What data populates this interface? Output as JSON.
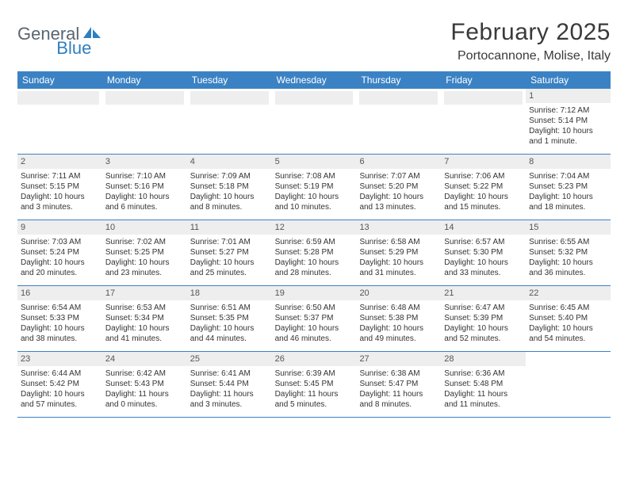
{
  "logo": {
    "text1": "General",
    "text2": "Blue",
    "icon_color": "#2f7fbf",
    "text1_color": "#5a6570"
  },
  "title": "February 2025",
  "location": "Portocannone, Molise, Italy",
  "colors": {
    "header_bg": "#3b82c4",
    "header_text": "#ffffff",
    "grid_line": "#3b82c4",
    "daynum_bg": "#eeeeee",
    "body_text": "#333333"
  },
  "day_headers": [
    "Sunday",
    "Monday",
    "Tuesday",
    "Wednesday",
    "Thursday",
    "Friday",
    "Saturday"
  ],
  "weeks": [
    [
      null,
      null,
      null,
      null,
      null,
      null,
      {
        "n": "1",
        "sunrise": "7:12 AM",
        "sunset": "5:14 PM",
        "daylight": "10 hours and 1 minute."
      }
    ],
    [
      {
        "n": "2",
        "sunrise": "7:11 AM",
        "sunset": "5:15 PM",
        "daylight": "10 hours and 3 minutes."
      },
      {
        "n": "3",
        "sunrise": "7:10 AM",
        "sunset": "5:16 PM",
        "daylight": "10 hours and 6 minutes."
      },
      {
        "n": "4",
        "sunrise": "7:09 AM",
        "sunset": "5:18 PM",
        "daylight": "10 hours and 8 minutes."
      },
      {
        "n": "5",
        "sunrise": "7:08 AM",
        "sunset": "5:19 PM",
        "daylight": "10 hours and 10 minutes."
      },
      {
        "n": "6",
        "sunrise": "7:07 AM",
        "sunset": "5:20 PM",
        "daylight": "10 hours and 13 minutes."
      },
      {
        "n": "7",
        "sunrise": "7:06 AM",
        "sunset": "5:22 PM",
        "daylight": "10 hours and 15 minutes."
      },
      {
        "n": "8",
        "sunrise": "7:04 AM",
        "sunset": "5:23 PM",
        "daylight": "10 hours and 18 minutes."
      }
    ],
    [
      {
        "n": "9",
        "sunrise": "7:03 AM",
        "sunset": "5:24 PM",
        "daylight": "10 hours and 20 minutes."
      },
      {
        "n": "10",
        "sunrise": "7:02 AM",
        "sunset": "5:25 PM",
        "daylight": "10 hours and 23 minutes."
      },
      {
        "n": "11",
        "sunrise": "7:01 AM",
        "sunset": "5:27 PM",
        "daylight": "10 hours and 25 minutes."
      },
      {
        "n": "12",
        "sunrise": "6:59 AM",
        "sunset": "5:28 PM",
        "daylight": "10 hours and 28 minutes."
      },
      {
        "n": "13",
        "sunrise": "6:58 AM",
        "sunset": "5:29 PM",
        "daylight": "10 hours and 31 minutes."
      },
      {
        "n": "14",
        "sunrise": "6:57 AM",
        "sunset": "5:30 PM",
        "daylight": "10 hours and 33 minutes."
      },
      {
        "n": "15",
        "sunrise": "6:55 AM",
        "sunset": "5:32 PM",
        "daylight": "10 hours and 36 minutes."
      }
    ],
    [
      {
        "n": "16",
        "sunrise": "6:54 AM",
        "sunset": "5:33 PM",
        "daylight": "10 hours and 38 minutes."
      },
      {
        "n": "17",
        "sunrise": "6:53 AM",
        "sunset": "5:34 PM",
        "daylight": "10 hours and 41 minutes."
      },
      {
        "n": "18",
        "sunrise": "6:51 AM",
        "sunset": "5:35 PM",
        "daylight": "10 hours and 44 minutes."
      },
      {
        "n": "19",
        "sunrise": "6:50 AM",
        "sunset": "5:37 PM",
        "daylight": "10 hours and 46 minutes."
      },
      {
        "n": "20",
        "sunrise": "6:48 AM",
        "sunset": "5:38 PM",
        "daylight": "10 hours and 49 minutes."
      },
      {
        "n": "21",
        "sunrise": "6:47 AM",
        "sunset": "5:39 PM",
        "daylight": "10 hours and 52 minutes."
      },
      {
        "n": "22",
        "sunrise": "6:45 AM",
        "sunset": "5:40 PM",
        "daylight": "10 hours and 54 minutes."
      }
    ],
    [
      {
        "n": "23",
        "sunrise": "6:44 AM",
        "sunset": "5:42 PM",
        "daylight": "10 hours and 57 minutes."
      },
      {
        "n": "24",
        "sunrise": "6:42 AM",
        "sunset": "5:43 PM",
        "daylight": "11 hours and 0 minutes."
      },
      {
        "n": "25",
        "sunrise": "6:41 AM",
        "sunset": "5:44 PM",
        "daylight": "11 hours and 3 minutes."
      },
      {
        "n": "26",
        "sunrise": "6:39 AM",
        "sunset": "5:45 PM",
        "daylight": "11 hours and 5 minutes."
      },
      {
        "n": "27",
        "sunrise": "6:38 AM",
        "sunset": "5:47 PM",
        "daylight": "11 hours and 8 minutes."
      },
      {
        "n": "28",
        "sunrise": "6:36 AM",
        "sunset": "5:48 PM",
        "daylight": "11 hours and 11 minutes."
      },
      null
    ]
  ],
  "labels": {
    "sunrise": "Sunrise:",
    "sunset": "Sunset:",
    "daylight": "Daylight:"
  }
}
